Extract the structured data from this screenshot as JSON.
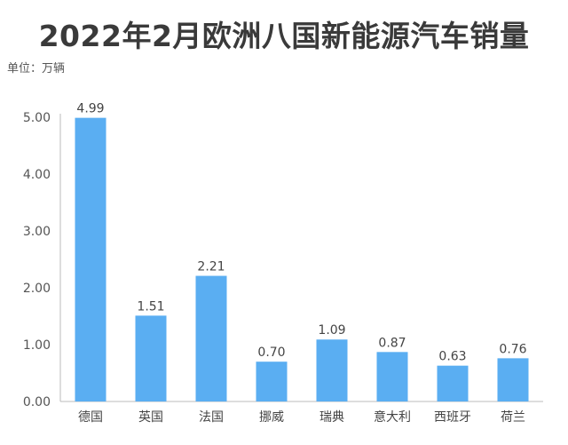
{
  "title": "2022年2月欧洲八国新能源汽车销量",
  "unit_label": "单位：万辆",
  "chart_data": {
    "type": "bar",
    "title": "2022年2月欧洲八国新能源汽车销量",
    "ylabel": "单位：万辆",
    "xlabel": "",
    "categories": [
      "德国",
      "英国",
      "法国",
      "挪威",
      "瑞典",
      "意大利",
      "西班牙",
      "荷兰"
    ],
    "values": [
      4.99,
      1.51,
      2.21,
      0.7,
      1.09,
      0.87,
      0.63,
      0.76
    ],
    "value_labels": [
      "4.99",
      "1.51",
      "2.21",
      "0.70",
      "1.09",
      "0.87",
      "0.63",
      "0.76"
    ],
    "ylim": [
      0,
      5
    ],
    "yticks": [
      0,
      1,
      2,
      3,
      4,
      5
    ],
    "ytick_labels": [
      "0.00",
      "1.00",
      "2.00",
      "3.00",
      "4.00",
      "5.00"
    ],
    "grid": false,
    "bar_color": "#5aaef2",
    "axis_color": "#bbbbbb"
  }
}
